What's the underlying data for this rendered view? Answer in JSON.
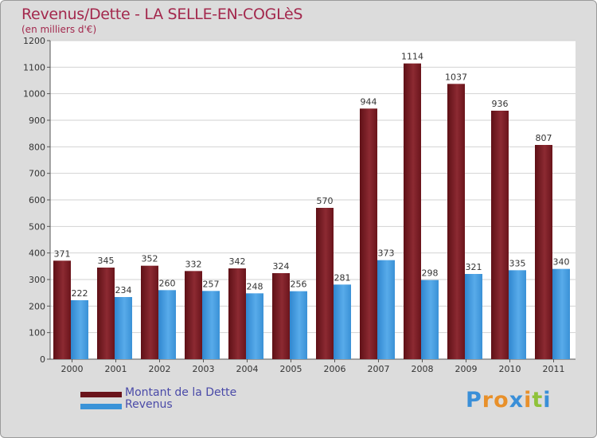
{
  "header": {
    "title": "Revenus/Dette - LA SELLE-EN-COGLèS",
    "subtitle": "(en milliers d'€)"
  },
  "chart_data": {
    "type": "bar",
    "title": "Revenus/Dette - LA SELLE-EN-COGLèS",
    "ylabel": "(en milliers d'€)",
    "xlabel": "",
    "ylim": [
      0,
      1200
    ],
    "yticks": [
      0,
      100,
      200,
      300,
      400,
      500,
      600,
      700,
      800,
      900,
      1000,
      1100,
      1200
    ],
    "grid": true,
    "categories": [
      "2000",
      "2001",
      "2002",
      "2003",
      "2004",
      "2005",
      "2006",
      "2007",
      "2008",
      "2009",
      "2010",
      "2011"
    ],
    "series": [
      {
        "name": "Montant de la Dette",
        "color": "#7a1a22",
        "values": [
          371,
          345,
          352,
          332,
          342,
          324,
          570,
          944,
          1114,
          1037,
          936,
          807
        ]
      },
      {
        "name": "Revenus",
        "color": "#3a93d8",
        "values": [
          222,
          234,
          260,
          257,
          248,
          256,
          281,
          373,
          298,
          321,
          335,
          340
        ]
      }
    ],
    "legend": "bottom-left"
  },
  "logo": {
    "letters": [
      "P",
      "r",
      "o",
      "x",
      "i",
      "t",
      "i"
    ],
    "colors": [
      "#3a8fd8",
      "#e8902a",
      "#e8902a",
      "#3a8fd8",
      "#e8902a",
      "#8fc23a",
      "#3a8fd8"
    ]
  }
}
